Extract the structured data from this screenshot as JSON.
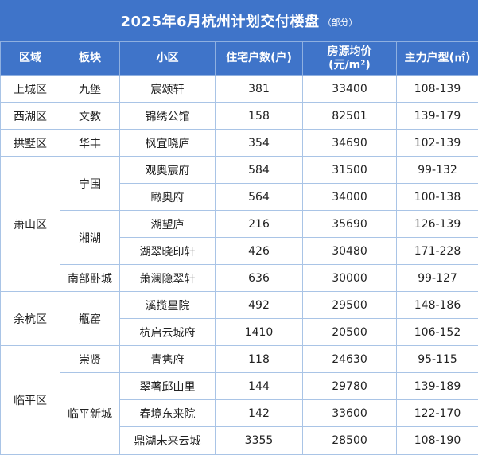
{
  "title": {
    "main": "2025年6月杭州计划交付楼盘",
    "sub": "（部分）"
  },
  "headers": [
    "区域",
    "板块",
    "小区",
    "住宅户数(户)",
    "房源均价\n(元/m²)",
    "主力户型(㎡)"
  ],
  "rows": [
    {
      "district": "上城区",
      "block": "九堡",
      "estate": "宸颂轩",
      "units": "381",
      "price": "33400",
      "layout": "108-139"
    },
    {
      "district": "西湖区",
      "block": "文教",
      "estate": "锦绣公馆",
      "units": "158",
      "price": "82501",
      "layout": "139-179"
    },
    {
      "district": "拱墅区",
      "block": "华丰",
      "estate": "枫宜晓庐",
      "units": "354",
      "price": "34690",
      "layout": "102-139"
    },
    {
      "district": "萧山区",
      "block": "宁围",
      "estate": "观奥宸府",
      "units": "584",
      "price": "31500",
      "layout": "99-132"
    },
    {
      "district": "",
      "block": "",
      "estate": "瞰奥府",
      "units": "564",
      "price": "34000",
      "layout": "100-138"
    },
    {
      "district": "",
      "block": "湘湖",
      "estate": "湖望庐",
      "units": "216",
      "price": "35690",
      "layout": "126-139"
    },
    {
      "district": "",
      "block": "",
      "estate": "湖翠晓印轩",
      "units": "426",
      "price": "30480",
      "layout": "171-228"
    },
    {
      "district": "",
      "block": "南部卧城",
      "estate": "萧澜隐翠轩",
      "units": "636",
      "price": "30000",
      "layout": "99-127"
    },
    {
      "district": "余杭区",
      "block": "瓶窑",
      "estate": "溪揽星院",
      "units": "492",
      "price": "29500",
      "layout": "148-186"
    },
    {
      "district": "",
      "block": "",
      "estate": "杭启云城府",
      "units": "1410",
      "price": "20500",
      "layout": "106-152"
    },
    {
      "district": "临平区",
      "block": "崇贤",
      "estate": "青隽府",
      "units": "118",
      "price": "24630",
      "layout": "95-115"
    },
    {
      "district": "",
      "block": "临平新城",
      "estate": "翠著邱山里",
      "units": "144",
      "price": "29780",
      "layout": "139-189"
    },
    {
      "district": "",
      "block": "",
      "estate": "春境东来院",
      "units": "142",
      "price": "33600",
      "layout": "122-170"
    },
    {
      "district": "",
      "block": "",
      "estate": "鼎湖未来云城",
      "units": "3355",
      "price": "28500",
      "layout": "108-190"
    }
  ]
}
